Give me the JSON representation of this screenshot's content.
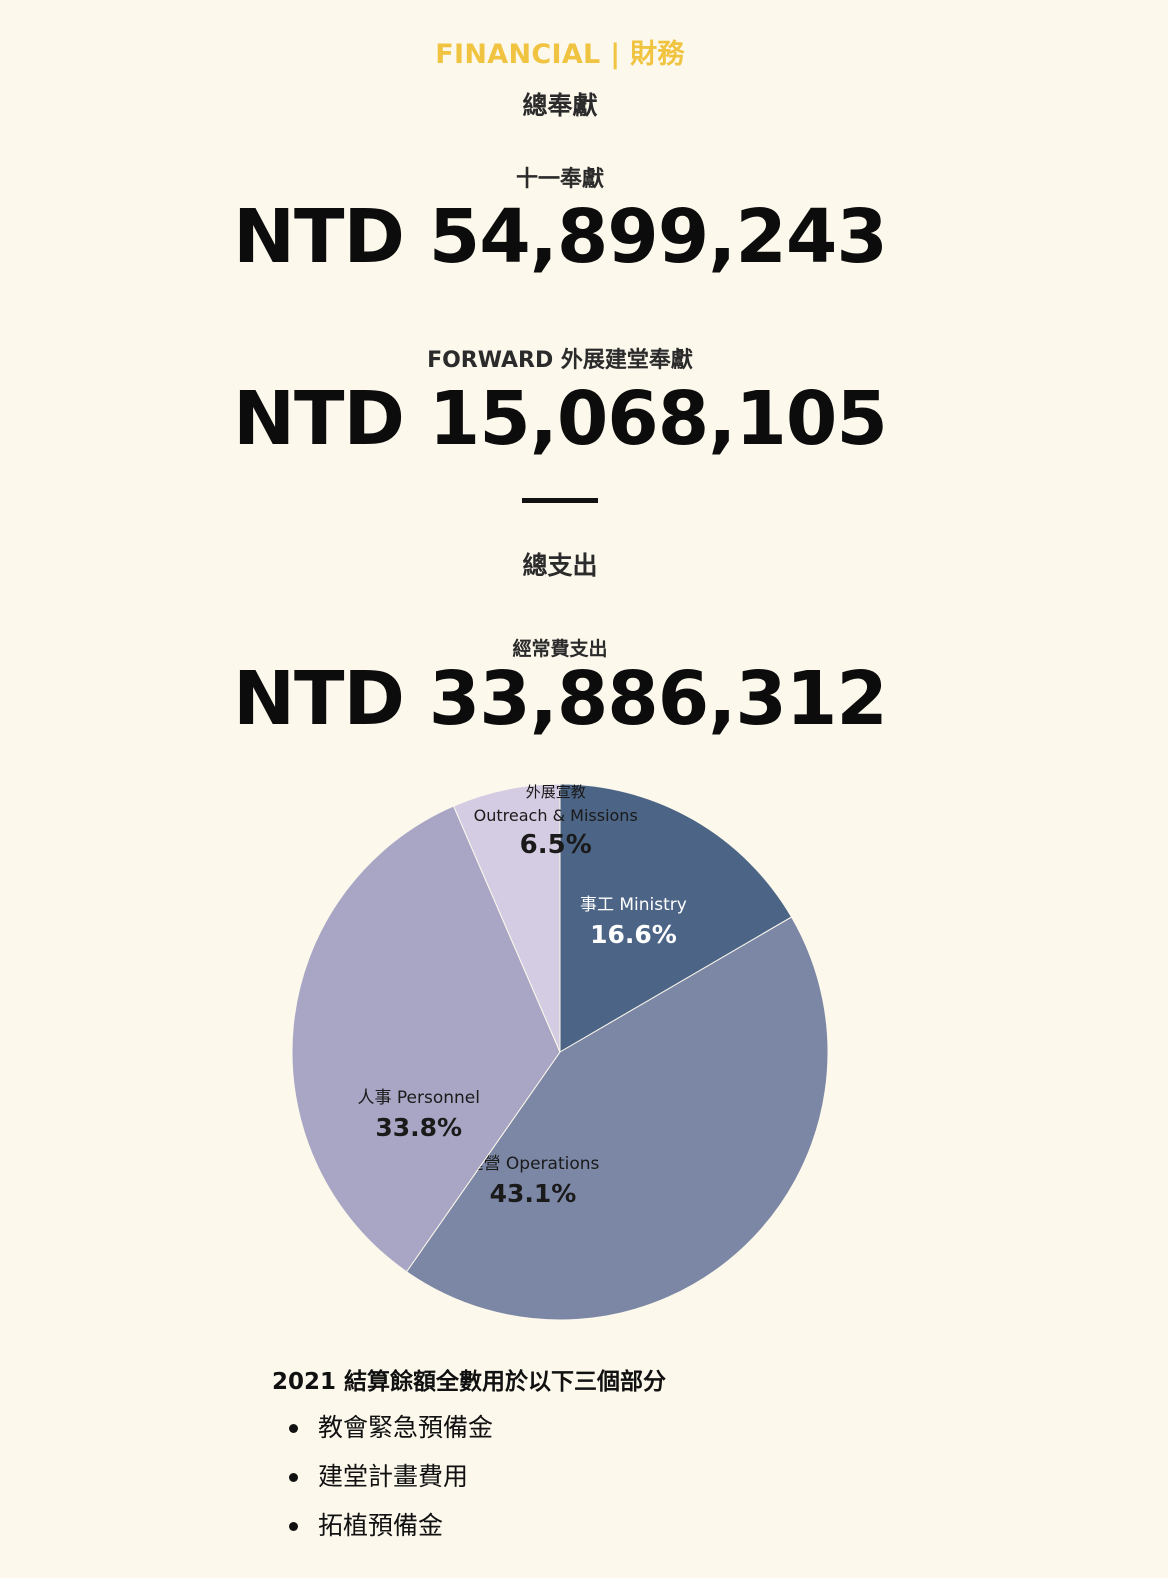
{
  "header": {
    "section_title": "FINANCIAL | 財務"
  },
  "giving": {
    "heading": "總奉獻",
    "tithe_label": "十一奉獻",
    "tithe_amount": "NTD 54,899,243",
    "forward_label": "FORWARD 外展建堂奉獻",
    "forward_amount": "NTD 15,068,105"
  },
  "expenses": {
    "heading": "總支出",
    "operating_label": "經常費支出",
    "operating_amount": "NTD 33,886,312"
  },
  "colors": {
    "accent": "#f0c340",
    "background": "#fcf8ec"
  },
  "chart_data": {
    "type": "pie",
    "title": "",
    "slices": [
      {
        "label_zh": "事工",
        "label_en": "Ministry",
        "value": 16.6,
        "display": "16.6%",
        "color": "#4c6586",
        "text_color": "#ffffff"
      },
      {
        "label_zh": "運營",
        "label_en": "Operations",
        "value": 43.1,
        "display": "43.1%",
        "color": "#7c87a6",
        "text_color": "#1a1a1a"
      },
      {
        "label_zh": "人事",
        "label_en": "Personnel",
        "value": 33.8,
        "display": "33.8%",
        "color": "#a8a6c4",
        "text_color": "#1a1a1a"
      },
      {
        "label_zh": "外展宣教",
        "label_en": "Outreach & Missions",
        "value": 6.5,
        "display": "6.5%",
        "color": "#d4cce2",
        "text_color": "#1a1a1a"
      }
    ],
    "start_angle_deg": 0,
    "direction": "clockwise"
  },
  "summary": {
    "title": "2021 結算餘額全數用於以下三個部分",
    "items": [
      "教會緊急預備金",
      "建堂計畫費用",
      "拓植預備金"
    ]
  }
}
